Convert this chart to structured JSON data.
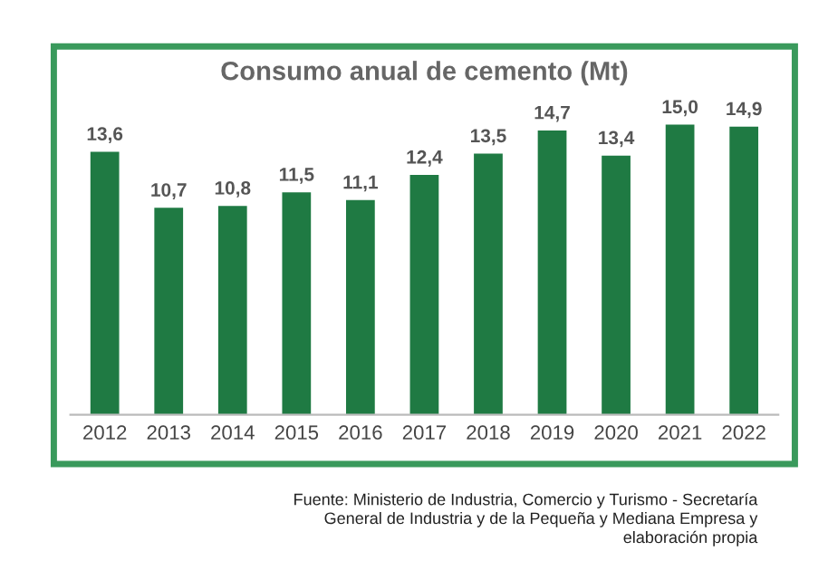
{
  "chart_data": {
    "type": "bar",
    "title": "Consumo anual de cemento (Mt)",
    "categories": [
      "2012",
      "2013",
      "2014",
      "2015",
      "2016",
      "2017",
      "2018",
      "2019",
      "2020",
      "2021",
      "2022"
    ],
    "values": [
      13.6,
      10.7,
      10.8,
      11.5,
      11.1,
      12.4,
      13.5,
      14.7,
      13.4,
      15.0,
      14.9
    ],
    "value_labels": [
      "13,6",
      "10,7",
      "10,8",
      "11,5",
      "11,1",
      "12,4",
      "13,5",
      "14,7",
      "13,4",
      "15,0",
      "14,9"
    ],
    "color": "#1f7a43",
    "grid": false,
    "annotations": [
      "Fuente: Ministerio de Industria, Comercio y Turismo - Secretaría\nGeneral de Industria y de la Pequeña y Mediana Empresa y\nelaboración propia"
    ]
  }
}
